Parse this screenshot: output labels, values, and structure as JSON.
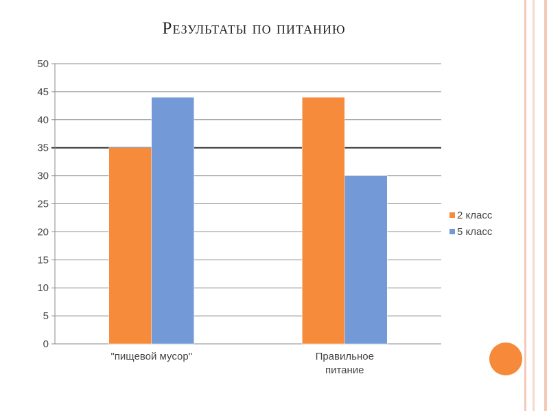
{
  "slide": {
    "title": "Результаты по питанию",
    "frame_colors": [
      "#f3c9b8",
      "#f6d8cc",
      "#f3c9b8"
    ],
    "accent_circle_color": "#f7893a"
  },
  "chart_data": {
    "type": "bar",
    "title": "",
    "categories": [
      "\"пищевой мусор\"",
      "Правильное питание"
    ],
    "category_lines": [
      [
        "\"пищевой мусор\""
      ],
      [
        "Правильное",
        "питание"
      ]
    ],
    "series": [
      {
        "name": "2 класс",
        "color": "#f58b3b",
        "values": [
          35,
          44
        ]
      },
      {
        "name": "5 класс",
        "color": "#7399d6",
        "values": [
          44,
          30
        ]
      }
    ],
    "ylim": [
      0,
      50
    ],
    "yticks": [
      0,
      5,
      10,
      15,
      20,
      25,
      30,
      35,
      40,
      45,
      50
    ],
    "grid": true,
    "highlight_line": 35,
    "legend": "right"
  }
}
